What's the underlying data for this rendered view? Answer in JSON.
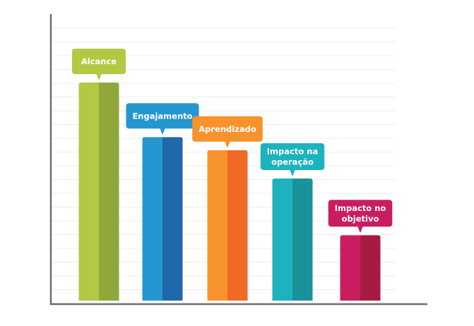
{
  "chart_data": {
    "type": "bar",
    "categories": [
      "Alcance",
      "Engajamento",
      "Aprendizado",
      "Impacto na\noperação",
      "Impacto no\nobjetivo"
    ],
    "values": [
      100,
      75,
      69,
      56,
      30
    ],
    "ylim": [
      0,
      115
    ],
    "grid": true,
    "series_colors": [
      {
        "light": "#b3c843",
        "dark": "#8ea83c"
      },
      {
        "light": "#2596cf",
        "dark": "#1f68a9"
      },
      {
        "light": "#f7922d",
        "dark": "#ee6a25"
      },
      {
        "light": "#1cb3bf",
        "dark": "#1a9299"
      },
      {
        "light": "#c81e60",
        "dark": "#a71b43"
      }
    ],
    "axis_color": "#6e6e6e",
    "grid_color": "#ededed"
  }
}
